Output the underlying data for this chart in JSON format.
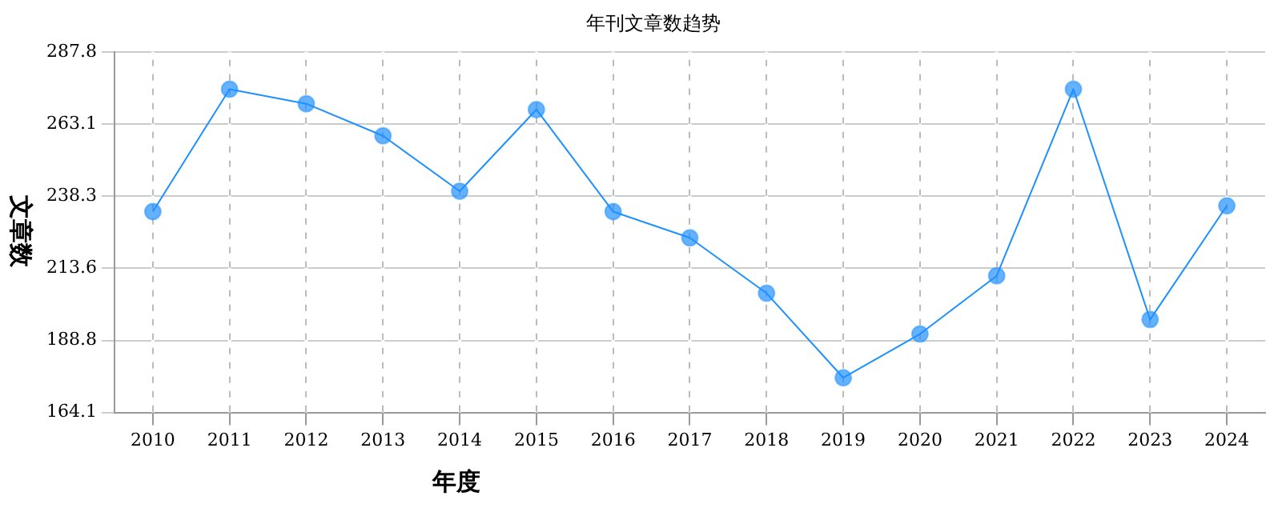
{
  "chart_data": {
    "type": "line",
    "title": "年刊文章数趋势",
    "xlabel": "年度",
    "ylabel": "文章数",
    "categories": [
      "2010",
      "2011",
      "2012",
      "2013",
      "2014",
      "2015",
      "2016",
      "2017",
      "2018",
      "2019",
      "2020",
      "2021",
      "2022",
      "2023",
      "2024"
    ],
    "series": [
      {
        "color": "#1e90ff",
        "values": [
          233,
          275,
          270,
          259,
          240,
          268,
          233,
          224,
          205,
          176,
          191,
          211,
          275,
          196,
          235
        ]
      }
    ],
    "ylim": [
      164.1,
      287.8
    ],
    "yticks": [
      164.1,
      188.8,
      213.6,
      238.3,
      263.1,
      287.8
    ],
    "grid": true,
    "legend": false,
    "marker": "circle",
    "line_style": "solid"
  }
}
